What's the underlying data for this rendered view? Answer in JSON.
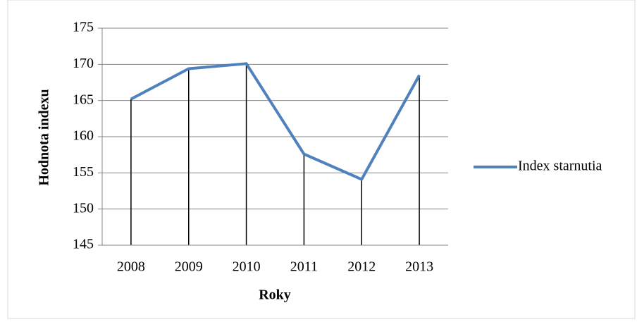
{
  "chart_data": {
    "type": "line",
    "x_label": "Roky",
    "y_label": "Hodnota indexu",
    "categories": [
      "2008",
      "2009",
      "2010",
      "2011",
      "2012",
      "2013"
    ],
    "series": [
      {
        "name": "Index starnutia",
        "color": "#4f81bd",
        "values": [
          165.2,
          169.4,
          170.1,
          157.6,
          154.1,
          168.5
        ]
      }
    ],
    "ylim": [
      145,
      175
    ],
    "yticks": [
      145,
      150,
      155,
      160,
      165,
      170,
      175
    ],
    "grid": true,
    "drop_lines": true,
    "legend": "right"
  }
}
